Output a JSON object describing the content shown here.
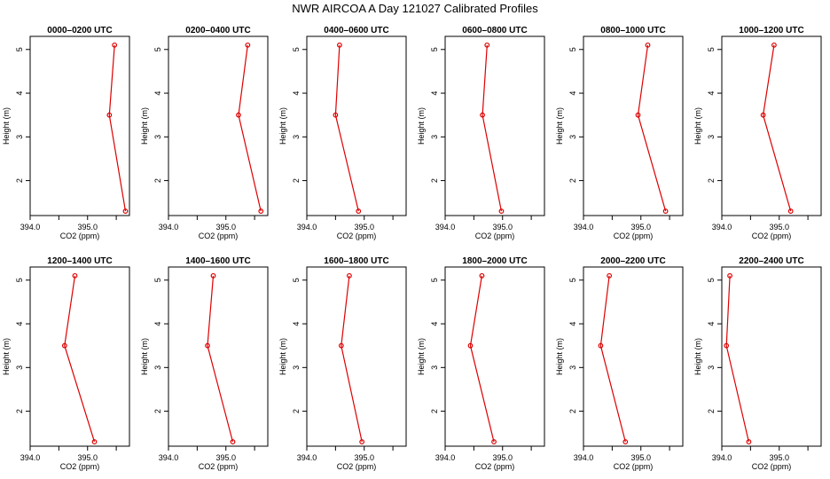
{
  "title": "NWR AIRCOA A  Day 121027  Calibrated Profiles",
  "colors": {
    "series": "#dd0000",
    "axis": "#000000"
  },
  "chart_data": {
    "type": "line",
    "xlabel": "CO2 (ppm)",
    "ylabel": "Height (m)",
    "xlim": [
      394.0,
      395.73
    ],
    "ylim": [
      1.2,
      5.3
    ],
    "xticks": [
      394.0,
      395.0
    ],
    "xtick_labels": [
      "394.0",
      "395.0"
    ],
    "xtick_minor": [
      394.5,
      395.5
    ],
    "yticks": [
      2,
      3,
      4,
      5
    ],
    "ytick_labels": [
      "2",
      "3",
      "4",
      "5"
    ],
    "heights": [
      5.1,
      3.5,
      1.3
    ],
    "panels": [
      {
        "title": "0000–0200 UTC",
        "co2": [
          395.47,
          395.38,
          395.66
        ]
      },
      {
        "title": "0200–0400 UTC",
        "co2": [
          395.38,
          395.22,
          395.61
        ]
      },
      {
        "title": "0400–0600 UTC",
        "co2": [
          394.57,
          394.5,
          394.9
        ]
      },
      {
        "title": "0600–0800 UTC",
        "co2": [
          394.73,
          394.65,
          394.98
        ]
      },
      {
        "title": "0800–1000 UTC",
        "co2": [
          395.12,
          394.95,
          395.43
        ]
      },
      {
        "title": "1000–1200 UTC",
        "co2": [
          394.91,
          394.72,
          395.2
        ]
      },
      {
        "title": "1200–1400 UTC",
        "co2": [
          394.78,
          394.6,
          395.12
        ]
      },
      {
        "title": "1400–1600 UTC",
        "co2": [
          394.78,
          394.68,
          395.12
        ]
      },
      {
        "title": "1600–1800 UTC",
        "co2": [
          394.74,
          394.6,
          394.96
        ]
      },
      {
        "title": "1800–2000 UTC",
        "co2": [
          394.64,
          394.44,
          394.85
        ]
      },
      {
        "title": "2000–2200 UTC",
        "co2": [
          394.45,
          394.3,
          394.73
        ]
      },
      {
        "title": "2200–2400 UTC",
        "co2": [
          394.14,
          394.08,
          394.47
        ]
      }
    ]
  }
}
